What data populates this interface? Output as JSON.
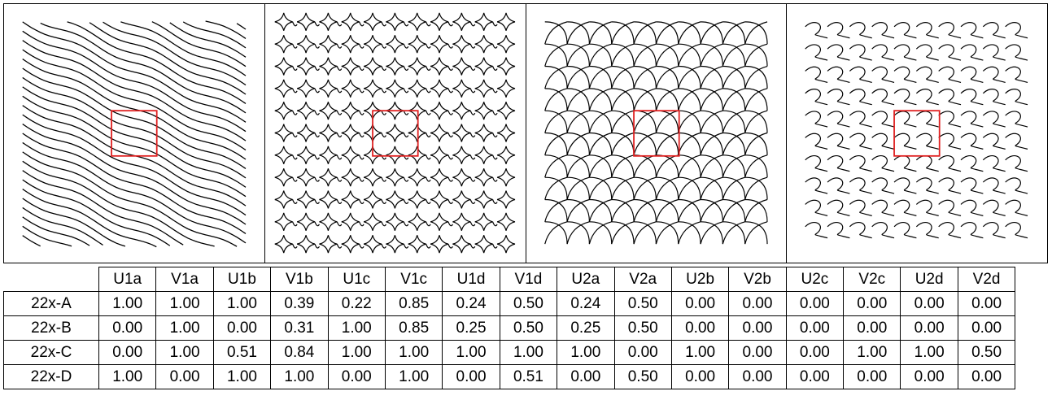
{
  "panels": [
    {
      "pattern": "diagonal-wave-strips",
      "highlight_color": "#e02020"
    },
    {
      "pattern": "star-lattice",
      "highlight_color": "#e02020"
    },
    {
      "pattern": "pinwheel-curves",
      "highlight_color": "#e02020"
    },
    {
      "pattern": "teardrop-loops",
      "highlight_color": "#e02020"
    }
  ],
  "table": {
    "columns": [
      "U1a",
      "V1a",
      "U1b",
      "V1b",
      "U1c",
      "V1c",
      "U1d",
      "V1d",
      "U2a",
      "V2a",
      "U2b",
      "V2b",
      "U2c",
      "V2c",
      "U2d",
      "V2d"
    ],
    "rows": [
      {
        "label": "22x-A",
        "values": [
          "1.00",
          "1.00",
          "1.00",
          "0.39",
          "0.22",
          "0.85",
          "0.24",
          "0.50",
          "0.24",
          "0.50",
          "0.00",
          "0.00",
          "0.00",
          "0.00",
          "0.00",
          "0.00"
        ]
      },
      {
        "label": "22x-B",
        "values": [
          "0.00",
          "1.00",
          "0.00",
          "0.31",
          "1.00",
          "0.85",
          "0.25",
          "0.50",
          "0.25",
          "0.50",
          "0.00",
          "0.00",
          "0.00",
          "0.00",
          "0.00",
          "0.00"
        ]
      },
      {
        "label": "22x-C",
        "values": [
          "0.00",
          "1.00",
          "0.51",
          "0.84",
          "1.00",
          "1.00",
          "1.00",
          "1.00",
          "1.00",
          "0.00",
          "1.00",
          "0.00",
          "0.00",
          "1.00",
          "1.00",
          "0.50"
        ]
      },
      {
        "label": "22x-D",
        "values": [
          "1.00",
          "0.00",
          "1.00",
          "1.00",
          "0.00",
          "1.00",
          "0.00",
          "0.51",
          "0.00",
          "0.50",
          "0.00",
          "0.00",
          "0.00",
          "0.00",
          "0.00",
          "0.00"
        ]
      }
    ]
  }
}
